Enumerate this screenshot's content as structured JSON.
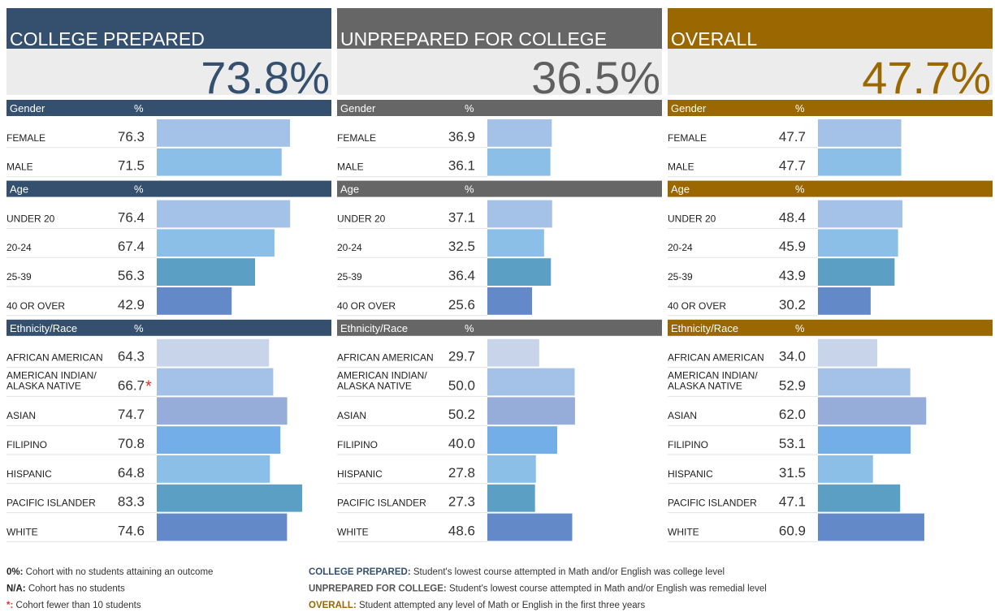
{
  "chart_data": [
    {
      "type": "bar",
      "title": "COLLEGE PREPARED",
      "headline": "73.8%",
      "color": "#34506e",
      "headline_color": "#34506e",
      "sections": [
        {
          "header": "Gender",
          "value_header": "%",
          "categories": [
            "FEMALE",
            "MALE"
          ],
          "values": [
            76.3,
            71.5
          ],
          "value_labels": [
            "76.3",
            "71.5"
          ],
          "colors": [
            "#a4c2e8",
            "#8bbfe8"
          ]
        },
        {
          "header": "Age",
          "value_header": "%",
          "categories": [
            "UNDER 20",
            "20-24",
            "25-39",
            "40 OR OVER"
          ],
          "values": [
            76.4,
            67.4,
            56.3,
            42.9
          ],
          "value_labels": [
            "76.4",
            "67.4",
            "56.3",
            "42.9"
          ],
          "colors": [
            "#a4c2e8",
            "#8bbfe8",
            "#5b9fc4",
            "#6389c8"
          ]
        },
        {
          "header": "Ethnicity/Race",
          "value_header": "%",
          "categories": [
            "AFRICAN AMERICAN",
            "AMERICAN INDIAN/ALASKA NATIVE",
            "ASIAN",
            "FILIPINO",
            "HISPANIC",
            "PACIFIC ISLANDER",
            "WHITE"
          ],
          "values": [
            64.3,
            66.7,
            74.7,
            70.8,
            64.8,
            83.3,
            74.6
          ],
          "value_labels": [
            "64.3",
            "66.7",
            "74.7",
            "70.8",
            "64.8",
            "83.3",
            "74.6"
          ],
          "marks": [
            null,
            "*",
            null,
            null,
            null,
            null,
            null
          ],
          "colors": [
            "#c8d4ea",
            "#a4c2e8",
            "#96acd9",
            "#74aee8",
            "#8bbfe8",
            "#5b9fc4",
            "#6389c8"
          ]
        }
      ]
    },
    {
      "type": "bar",
      "title": "UNPREPARED FOR COLLEGE",
      "headline": "36.5%",
      "color": "#666666",
      "headline_color": "#5f5f5f",
      "sections": [
        {
          "header": "Gender",
          "value_header": "%",
          "categories": [
            "FEMALE",
            "MALE"
          ],
          "values": [
            36.9,
            36.1
          ],
          "value_labels": [
            "36.9",
            "36.1"
          ],
          "colors": [
            "#a4c2e8",
            "#8bbfe8"
          ]
        },
        {
          "header": "Age",
          "value_header": "%",
          "categories": [
            "UNDER 20",
            "20-24",
            "25-39",
            "40 OR OVER"
          ],
          "values": [
            37.1,
            32.5,
            36.4,
            25.6
          ],
          "value_labels": [
            "37.1",
            "32.5",
            "36.4",
            "25.6"
          ],
          "colors": [
            "#a4c2e8",
            "#8bbfe8",
            "#5b9fc4",
            "#6389c8"
          ]
        },
        {
          "header": "Ethnicity/Race",
          "value_header": "%",
          "categories": [
            "AFRICAN AMERICAN",
            "AMERICAN INDIAN/ALASKA NATIVE",
            "ASIAN",
            "FILIPINO",
            "HISPANIC",
            "PACIFIC ISLANDER",
            "WHITE"
          ],
          "values": [
            29.7,
            50.0,
            50.2,
            40.0,
            27.8,
            27.3,
            48.6
          ],
          "value_labels": [
            "29.7",
            "50.0",
            "50.2",
            "40.0",
            "27.8",
            "27.3",
            "48.6"
          ],
          "colors": [
            "#c8d4ea",
            "#a4c2e8",
            "#96acd9",
            "#74aee8",
            "#8bbfe8",
            "#5b9fc4",
            "#6389c8"
          ]
        }
      ]
    },
    {
      "type": "bar",
      "title": "OVERALL",
      "headline": "47.7%",
      "color": "#9a6700",
      "headline_color": "#9a6700",
      "sections": [
        {
          "header": "Gender",
          "value_header": "%",
          "categories": [
            "FEMALE",
            "MALE"
          ],
          "values": [
            47.7,
            47.7
          ],
          "value_labels": [
            "47.7",
            "47.7"
          ],
          "colors": [
            "#a4c2e8",
            "#8bbfe8"
          ]
        },
        {
          "header": "Age",
          "value_header": "%",
          "categories": [
            "UNDER 20",
            "20-24",
            "25-39",
            "40 OR OVER"
          ],
          "values": [
            48.4,
            45.9,
            43.9,
            30.2
          ],
          "value_labels": [
            "48.4",
            "45.9",
            "43.9",
            "30.2"
          ],
          "colors": [
            "#a4c2e8",
            "#8bbfe8",
            "#5b9fc4",
            "#6389c8"
          ]
        },
        {
          "header": "Ethnicity/Race",
          "value_header": "%",
          "categories": [
            "AFRICAN AMERICAN",
            "AMERICAN INDIAN/ALASKA NATIVE",
            "ASIAN",
            "FILIPINO",
            "HISPANIC",
            "PACIFIC ISLANDER",
            "WHITE"
          ],
          "values": [
            34.0,
            52.9,
            62.0,
            53.1,
            31.5,
            47.1,
            60.9
          ],
          "value_labels": [
            "34.0",
            "52.9",
            "62.0",
            "53.1",
            "31.5",
            "47.1",
            "60.9"
          ],
          "colors": [
            "#c8d4ea",
            "#a4c2e8",
            "#96acd9",
            "#74aee8",
            "#8bbfe8",
            "#5b9fc4",
            "#6389c8"
          ]
        }
      ]
    }
  ],
  "footnotes_left": [
    {
      "term": "0%:",
      "text": " Cohort with no students attaining an outcome",
      "color": "#222222"
    },
    {
      "term": "N/A:",
      "text": " Cohort has no students",
      "color": "#222222"
    },
    {
      "term": "*:",
      "text": " Cohort fewer than 10 students",
      "color": "#e03020"
    }
  ],
  "footnotes_right": [
    {
      "term": "COLLEGE PREPARED:",
      "text": " Student's lowest course attempted in Math and/or English was college level",
      "color": "#34506e"
    },
    {
      "term": "UNPREPARED FOR COLLEGE:",
      "text": " Student's lowest course attempted in Math and/or English was remedial level",
      "color": "#555555"
    },
    {
      "term": "OVERALL:",
      "text": " Student attempted any level of Math or English in the first three years",
      "color": "#9a6700"
    }
  ]
}
